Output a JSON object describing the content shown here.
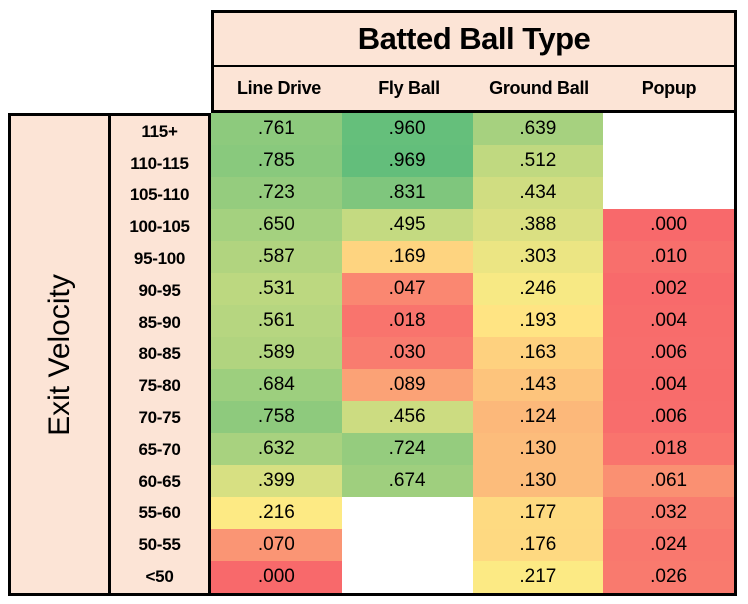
{
  "title": "Batted Ball Type",
  "row_axis_label": "Exit Velocity",
  "chart_data": {
    "type": "heatmap",
    "title": "Batted Ball Type",
    "row_axis_label": "Exit Velocity",
    "columns": [
      "Line Drive",
      "Fly Ball",
      "Ground Ball",
      "Popup"
    ],
    "rows": [
      "115+",
      "110-115",
      "105-110",
      "100-105",
      "95-100",
      "90-95",
      "85-90",
      "80-85",
      "75-80",
      "70-75",
      "65-70",
      "60-65",
      "55-60",
      "50-55",
      "<50"
    ],
    "cells": [
      [
        ".761",
        ".960",
        ".639",
        null
      ],
      [
        ".785",
        ".969",
        ".512",
        null
      ],
      [
        ".723",
        ".831",
        ".434",
        null
      ],
      [
        ".650",
        ".495",
        ".388",
        ".000"
      ],
      [
        ".587",
        ".169",
        ".303",
        ".010"
      ],
      [
        ".531",
        ".047",
        ".246",
        ".002"
      ],
      [
        ".561",
        ".018",
        ".193",
        ".004"
      ],
      [
        ".589",
        ".030",
        ".163",
        ".006"
      ],
      [
        ".684",
        ".089",
        ".143",
        ".004"
      ],
      [
        ".758",
        ".456",
        ".124",
        ".006"
      ],
      [
        ".632",
        ".724",
        ".130",
        ".018"
      ],
      [
        ".399",
        ".674",
        ".130",
        ".061"
      ],
      [
        ".216",
        null,
        ".177",
        ".032"
      ],
      [
        ".070",
        null,
        ".176",
        ".024"
      ],
      [
        ".000",
        null,
        ".217",
        ".026"
      ]
    ],
    "color_scale": {
      "min_value": 0,
      "mid_value": 0.2045,
      "max_value": 0.969,
      "min_color": "#F8696B",
      "mid_color": "#FFEB84",
      "max_color": "#63BE7B",
      "empty_color": "#FFFFFF"
    },
    "legend": "none",
    "grid": "off"
  },
  "colors": {
    "panel_bg": "#FCE4D6",
    "border": "#000000",
    "text": "#000000",
    "page_bg": "#FFFFFF"
  }
}
